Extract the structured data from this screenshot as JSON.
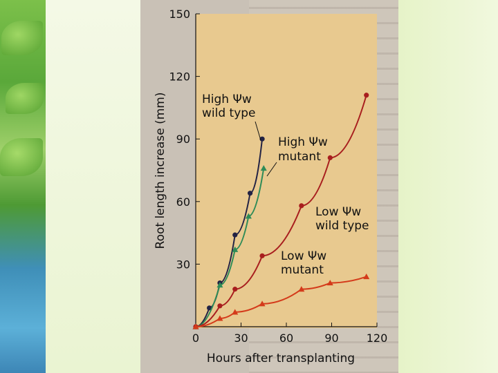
{
  "chart_data": {
    "type": "line",
    "xlabel": "Hours after transplanting",
    "ylabel": "Root length increase (mm)",
    "xlim": [
      0,
      120
    ],
    "ylim": [
      0,
      150
    ],
    "x_ticks": [
      "0",
      "30",
      "60",
      "90",
      "120"
    ],
    "y_ticks": [
      "30",
      "60",
      "90",
      "120",
      "150"
    ],
    "grid": false,
    "legend": "none",
    "series": [
      {
        "name": "High Ψw wild type",
        "color": "#222244",
        "marker": "circle",
        "x": [
          0,
          9,
          16,
          26,
          36,
          44
        ],
        "y": [
          0,
          9,
          21,
          44,
          64,
          90
        ]
      },
      {
        "name": "High Ψw mutant",
        "color": "#2e8b57",
        "marker": "triangle",
        "x": [
          0,
          16,
          26,
          35,
          45
        ],
        "y": [
          0,
          20,
          37,
          53,
          76
        ]
      },
      {
        "name": "Low Ψw wild type",
        "color": "#a81e1e",
        "marker": "circle",
        "x": [
          0,
          16,
          26,
          44,
          70,
          89,
          113
        ],
        "y": [
          0,
          10,
          18,
          34,
          58,
          81,
          111
        ]
      },
      {
        "name": "Low Ψw mutant",
        "color": "#d43a1a",
        "marker": "triangle",
        "x": [
          0,
          16,
          26,
          44,
          70,
          89,
          113
        ],
        "y": [
          0,
          4,
          7,
          11,
          18,
          21,
          24
        ]
      }
    ],
    "annotations": [
      {
        "lines": [
          "High Ψw",
          "wild type"
        ]
      },
      {
        "lines": [
          "High Ψw",
          "mutant"
        ]
      },
      {
        "lines": [
          "Low Ψw",
          "wild type"
        ]
      },
      {
        "lines": [
          "Low Ψw",
          "mutant"
        ]
      }
    ]
  }
}
